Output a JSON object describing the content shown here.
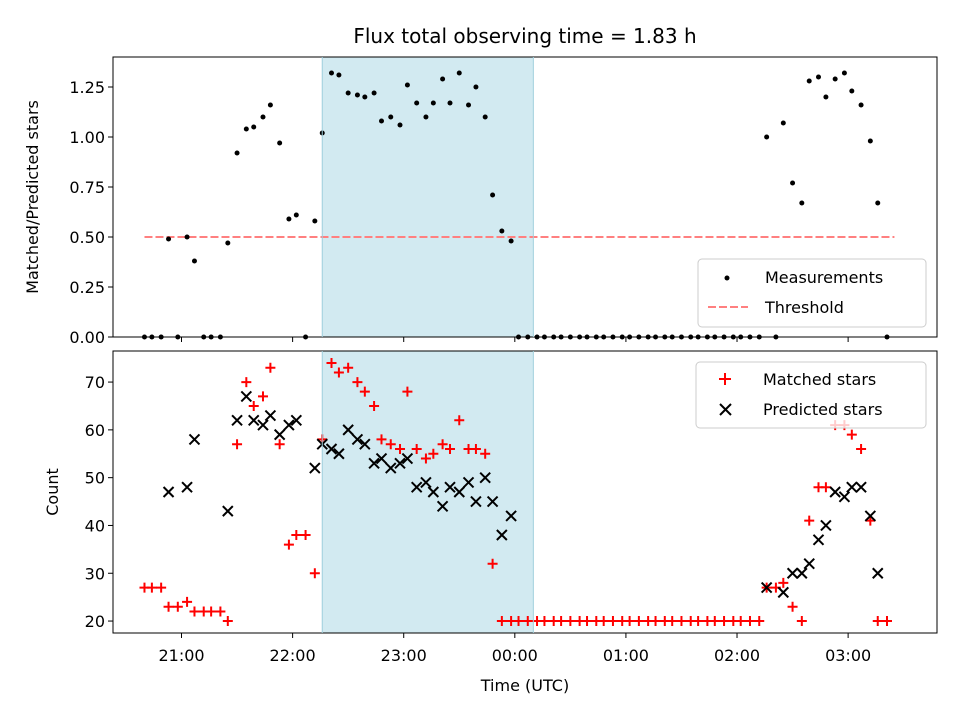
{
  "chart_data": [
    {
      "type": "scatter",
      "title": "Flux total observing time = 1.83 h",
      "xlabel": "",
      "ylabel": "Matched/Predicted stars",
      "x_axis": "time (UTC)",
      "ylim": [
        0,
        1.4
      ],
      "yticks": [
        "0.00",
        "0.25",
        "0.50",
        "0.75",
        "1.00",
        "1.25"
      ],
      "highlight_span": {
        "from": "22:16",
        "to": "00:10",
        "color": "#add8e6"
      },
      "legend": {
        "position": "lower-right",
        "entries": [
          "Measurements",
          "Threshold"
        ]
      },
      "threshold": {
        "name": "Threshold",
        "value": 0.5,
        "from": "20:40",
        "to": "03:25",
        "color": "#ff8080",
        "style": "dashed"
      },
      "series": [
        {
          "name": "Measurements",
          "color": "#000000",
          "marker": "dot",
          "points": [
            [
              "20:40",
              0
            ],
            [
              "20:44",
              0
            ],
            [
              "20:49",
              0
            ],
            [
              "20:53",
              0.49
            ],
            [
              "20:58",
              0
            ],
            [
              "21:03",
              0.5
            ],
            [
              "21:07",
              0.38
            ],
            [
              "21:12",
              0
            ],
            [
              "21:16",
              0
            ],
            [
              "21:21",
              0
            ],
            [
              "21:25",
              0.47
            ],
            [
              "21:30",
              0.92
            ],
            [
              "21:35",
              1.04
            ],
            [
              "21:39",
              1.05
            ],
            [
              "21:44",
              1.1
            ],
            [
              "21:48",
              1.16
            ],
            [
              "21:53",
              0.97
            ],
            [
              "21:58",
              0.59
            ],
            [
              "22:02",
              0.61
            ],
            [
              "22:07",
              0
            ],
            [
              "22:12",
              0.58
            ],
            [
              "22:16",
              1.02
            ],
            [
              "22:21",
              1.32
            ],
            [
              "22:25",
              1.31
            ],
            [
              "22:30",
              1.22
            ],
            [
              "22:35",
              1.21
            ],
            [
              "22:39",
              1.2
            ],
            [
              "22:44",
              1.22
            ],
            [
              "22:48",
              1.08
            ],
            [
              "22:53",
              1.1
            ],
            [
              "22:58",
              1.06
            ],
            [
              "23:02",
              1.26
            ],
            [
              "23:07",
              1.17
            ],
            [
              "23:12",
              1.1
            ],
            [
              "23:16",
              1.17
            ],
            [
              "23:21",
              1.29
            ],
            [
              "23:25",
              1.17
            ],
            [
              "23:30",
              1.32
            ],
            [
              "23:35",
              1.16
            ],
            [
              "23:39",
              1.25
            ],
            [
              "23:44",
              1.1
            ],
            [
              "23:48",
              0.71
            ],
            [
              "23:53",
              0.53
            ],
            [
              "23:58",
              0.48
            ],
            [
              "00:02",
              0
            ],
            [
              "00:07",
              0
            ],
            [
              "00:12",
              0
            ],
            [
              "00:16",
              0
            ],
            [
              "00:21",
              0
            ],
            [
              "00:25",
              0
            ],
            [
              "00:30",
              0
            ],
            [
              "00:35",
              0
            ],
            [
              "00:39",
              0
            ],
            [
              "00:44",
              0
            ],
            [
              "00:48",
              0
            ],
            [
              "00:53",
              0
            ],
            [
              "00:58",
              0
            ],
            [
              "01:02",
              0
            ],
            [
              "01:07",
              0
            ],
            [
              "01:12",
              0
            ],
            [
              "01:16",
              0
            ],
            [
              "01:21",
              0
            ],
            [
              "01:25",
              0
            ],
            [
              "01:30",
              0
            ],
            [
              "01:35",
              0
            ],
            [
              "01:39",
              0
            ],
            [
              "01:44",
              0
            ],
            [
              "01:48",
              0
            ],
            [
              "01:53",
              0
            ],
            [
              "01:58",
              0
            ],
            [
              "02:02",
              0
            ],
            [
              "02:07",
              0
            ],
            [
              "02:12",
              0
            ],
            [
              "02:16",
              1.0
            ],
            [
              "02:21",
              0
            ],
            [
              "02:25",
              1.07
            ],
            [
              "02:30",
              0.77
            ],
            [
              "02:35",
              0.67
            ],
            [
              "02:39",
              1.28
            ],
            [
              "02:44",
              1.3
            ],
            [
              "02:48",
              1.2
            ],
            [
              "02:53",
              1.29
            ],
            [
              "02:58",
              1.32
            ],
            [
              "03:02",
              1.23
            ],
            [
              "03:07",
              1.16
            ],
            [
              "03:12",
              0.98
            ],
            [
              "03:16",
              0.67
            ],
            [
              "03:21",
              0
            ]
          ]
        }
      ]
    },
    {
      "type": "scatter",
      "title": "",
      "xlabel": "Time (UTC)",
      "ylabel": "Count",
      "ylim": [
        17.5,
        76.5
      ],
      "yticks": [
        "20",
        "30",
        "40",
        "50",
        "60",
        "70"
      ],
      "xticks": [
        "21:00",
        "22:00",
        "23:00",
        "00:00",
        "01:00",
        "02:00",
        "03:00"
      ],
      "highlight_span": {
        "from": "22:16",
        "to": "00:10",
        "color": "#add8e6"
      },
      "legend": {
        "position": "upper-right",
        "entries": [
          "Matched stars",
          "Predicted stars"
        ]
      },
      "series": [
        {
          "name": "Matched stars",
          "color": "#ff0000",
          "marker": "plus",
          "points": [
            [
              "20:40",
              27
            ],
            [
              "20:44",
              27
            ],
            [
              "20:49",
              27
            ],
            [
              "20:53",
              23
            ],
            [
              "20:58",
              23
            ],
            [
              "21:03",
              24
            ],
            [
              "21:07",
              22
            ],
            [
              "21:12",
              22
            ],
            [
              "21:16",
              22
            ],
            [
              "21:21",
              22
            ],
            [
              "21:25",
              20
            ],
            [
              "21:30",
              57
            ],
            [
              "21:35",
              70
            ],
            [
              "21:39",
              65
            ],
            [
              "21:44",
              67
            ],
            [
              "21:48",
              73
            ],
            [
              "21:53",
              57
            ],
            [
              "21:58",
              36
            ],
            [
              "22:02",
              38
            ],
            [
              "22:07",
              38
            ],
            [
              "22:12",
              30
            ],
            [
              "22:16",
              58
            ],
            [
              "22:21",
              74
            ],
            [
              "22:25",
              72
            ],
            [
              "22:30",
              73
            ],
            [
              "22:35",
              70
            ],
            [
              "22:39",
              68
            ],
            [
              "22:44",
              65
            ],
            [
              "22:48",
              58
            ],
            [
              "22:53",
              57
            ],
            [
              "22:58",
              56
            ],
            [
              "23:02",
              68
            ],
            [
              "23:07",
              56
            ],
            [
              "23:12",
              54
            ],
            [
              "23:16",
              55
            ],
            [
              "23:21",
              57
            ],
            [
              "23:25",
              56
            ],
            [
              "23:30",
              62
            ],
            [
              "23:35",
              56
            ],
            [
              "23:39",
              56
            ],
            [
              "23:44",
              55
            ],
            [
              "23:48",
              32
            ],
            [
              "23:53",
              20
            ],
            [
              "23:58",
              20
            ],
            [
              "00:02",
              20
            ],
            [
              "00:07",
              20
            ],
            [
              "00:12",
              20
            ],
            [
              "00:16",
              20
            ],
            [
              "00:21",
              20
            ],
            [
              "00:25",
              20
            ],
            [
              "00:30",
              20
            ],
            [
              "00:35",
              20
            ],
            [
              "00:39",
              20
            ],
            [
              "00:44",
              20
            ],
            [
              "00:48",
              20
            ],
            [
              "00:53",
              20
            ],
            [
              "00:58",
              20
            ],
            [
              "01:02",
              20
            ],
            [
              "01:07",
              20
            ],
            [
              "01:12",
              20
            ],
            [
              "01:16",
              20
            ],
            [
              "01:21",
              20
            ],
            [
              "01:25",
              20
            ],
            [
              "01:30",
              20
            ],
            [
              "01:35",
              20
            ],
            [
              "01:39",
              20
            ],
            [
              "01:44",
              20
            ],
            [
              "01:48",
              20
            ],
            [
              "01:53",
              20
            ],
            [
              "01:58",
              20
            ],
            [
              "02:02",
              20
            ],
            [
              "02:07",
              20
            ],
            [
              "02:12",
              20
            ],
            [
              "02:16",
              27
            ],
            [
              "02:21",
              27
            ],
            [
              "02:25",
              28
            ],
            [
              "02:30",
              23
            ],
            [
              "02:35",
              20
            ],
            [
              "02:39",
              41
            ],
            [
              "02:44",
              48
            ],
            [
              "02:48",
              48
            ],
            [
              "02:53",
              61
            ],
            [
              "02:58",
              61
            ],
            [
              "03:02",
              59
            ],
            [
              "03:07",
              56
            ],
            [
              "03:12",
              41
            ],
            [
              "03:16",
              20
            ],
            [
              "03:21",
              20
            ]
          ]
        },
        {
          "name": "Predicted stars",
          "color": "#000000",
          "marker": "x",
          "points": [
            [
              "20:53",
              47
            ],
            [
              "21:03",
              48
            ],
            [
              "21:07",
              58
            ],
            [
              "21:25",
              43
            ],
            [
              "21:30",
              62
            ],
            [
              "21:35",
              67
            ],
            [
              "21:39",
              62
            ],
            [
              "21:44",
              61
            ],
            [
              "21:48",
              63
            ],
            [
              "21:53",
              59
            ],
            [
              "21:58",
              61
            ],
            [
              "22:02",
              62
            ],
            [
              "22:12",
              52
            ],
            [
              "22:16",
              57
            ],
            [
              "22:21",
              56
            ],
            [
              "22:25",
              55
            ],
            [
              "22:30",
              60
            ],
            [
              "22:35",
              58
            ],
            [
              "22:39",
              57
            ],
            [
              "22:44",
              53
            ],
            [
              "22:48",
              54
            ],
            [
              "22:53",
              52
            ],
            [
              "22:58",
              53
            ],
            [
              "23:02",
              54
            ],
            [
              "23:07",
              48
            ],
            [
              "23:12",
              49
            ],
            [
              "23:16",
              47
            ],
            [
              "23:21",
              44
            ],
            [
              "23:25",
              48
            ],
            [
              "23:30",
              47
            ],
            [
              "23:35",
              49
            ],
            [
              "23:39",
              45
            ],
            [
              "23:44",
              50
            ],
            [
              "23:48",
              45
            ],
            [
              "23:53",
              38
            ],
            [
              "23:58",
              42
            ],
            [
              "02:16",
              27
            ],
            [
              "02:25",
              26
            ],
            [
              "02:30",
              30
            ],
            [
              "02:35",
              30
            ],
            [
              "02:39",
              32
            ],
            [
              "02:44",
              37
            ],
            [
              "02:48",
              40
            ],
            [
              "02:53",
              47
            ],
            [
              "02:58",
              46
            ],
            [
              "03:02",
              48
            ],
            [
              "03:07",
              48
            ],
            [
              "03:12",
              42
            ],
            [
              "03:16",
              30
            ]
          ]
        }
      ]
    }
  ]
}
